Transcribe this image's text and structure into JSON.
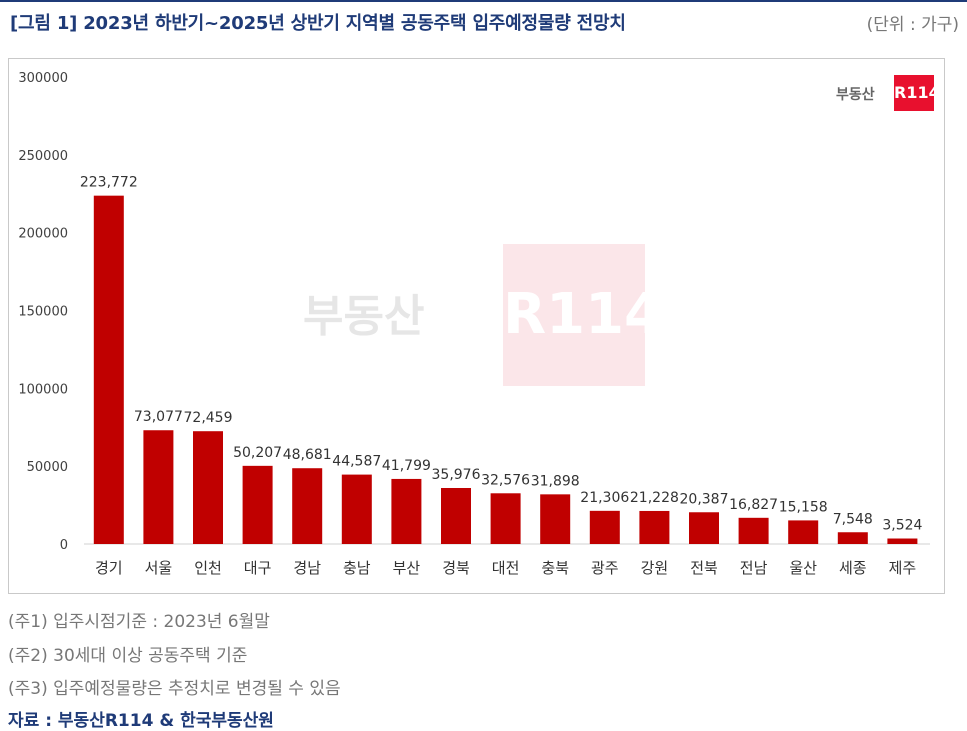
{
  "header": {
    "title": "[그림 1] 2023년 하반기~2025년 상반기 지역별 공동주택 입주예정물량 전망치",
    "unit": "(단위 : 가구)"
  },
  "brand": {
    "text": "부동산",
    "box": "R114"
  },
  "watermark": {
    "text": "부동산",
    "box": "R114"
  },
  "chart_data": {
    "type": "bar",
    "categories": [
      "경기",
      "서울",
      "인천",
      "대구",
      "경남",
      "충남",
      "부산",
      "경북",
      "대전",
      "충북",
      "광주",
      "강원",
      "전북",
      "전남",
      "울산",
      "세종",
      "제주"
    ],
    "values": [
      223772,
      73077,
      72459,
      50207,
      48681,
      44587,
      41799,
      35976,
      32576,
      31898,
      21306,
      21228,
      20387,
      16827,
      15158,
      7548,
      3524
    ],
    "value_labels": [
      "223,772",
      "73,077",
      "72,459",
      "50,207",
      "48,681",
      "44,587",
      "41,799",
      "35,976",
      "32,576",
      "31,898",
      "21,306",
      "21,228",
      "20,387",
      "16,827",
      "15,158",
      "7,548",
      "3,524"
    ],
    "y_ticks": [
      "0",
      "50000",
      "100000",
      "150000",
      "200000",
      "250000",
      "300000"
    ],
    "ylim": [
      0,
      300000
    ],
    "bar_color": "#c00000",
    "grid": false,
    "legend": "none"
  },
  "notes": [
    "(주1) 입주시점기준 : 2023년 6월말",
    "(주2) 30세대 이상 공동주택 기준",
    "(주3) 입주예정물량은 추정치로 변경될 수 있음"
  ],
  "source": "자료 : 부동산R114 & 한국부동산원"
}
